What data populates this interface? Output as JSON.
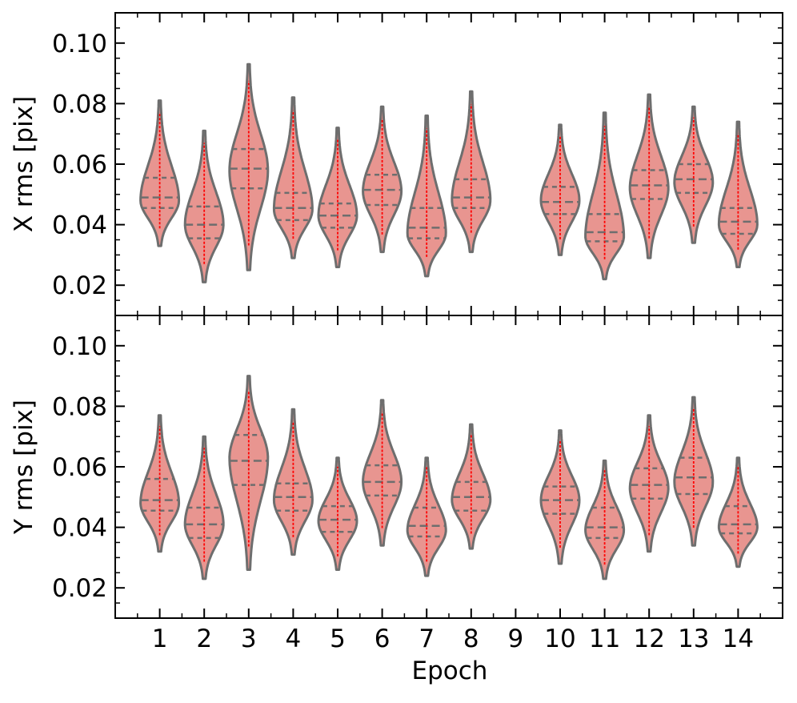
{
  "chart_data": [
    {
      "type": "violin",
      "ylabel": "X rms [pix]",
      "xlabel": "",
      "ylim": [
        0.01,
        0.11
      ],
      "yticks": [
        0.02,
        0.04,
        0.06,
        0.08,
        0.1
      ],
      "ytick_labels": [
        "0.02",
        "0.04",
        "0.06",
        "0.08",
        "0.10"
      ],
      "categories": [
        "1",
        "2",
        "3",
        "4",
        "5",
        "6",
        "7",
        "8",
        "9",
        "10",
        "11",
        "12",
        "13",
        "14"
      ],
      "fill_color": "#e89590",
      "edge_color": "#6e6e6e",
      "marker_color": "#ff0000",
      "violins": [
        {
          "epoch": "1",
          "min": 0.033,
          "q1": 0.0455,
          "median": 0.049,
          "q3": 0.0555,
          "max": 0.081,
          "mode": 0.048
        },
        {
          "epoch": "2",
          "min": 0.021,
          "q1": 0.0355,
          "median": 0.04,
          "q3": 0.046,
          "max": 0.071,
          "mode": 0.04
        },
        {
          "epoch": "3",
          "min": 0.025,
          "q1": 0.052,
          "median": 0.0585,
          "q3": 0.065,
          "max": 0.093,
          "mode": 0.058
        },
        {
          "epoch": "4",
          "min": 0.029,
          "q1": 0.0415,
          "median": 0.0455,
          "q3": 0.0505,
          "max": 0.082,
          "mode": 0.045
        },
        {
          "epoch": "5",
          "min": 0.026,
          "q1": 0.039,
          "median": 0.043,
          "q3": 0.047,
          "max": 0.072,
          "mode": 0.043
        },
        {
          "epoch": "6",
          "min": 0.031,
          "q1": 0.0465,
          "median": 0.0515,
          "q3": 0.0565,
          "max": 0.079,
          "mode": 0.051
        },
        {
          "epoch": "7",
          "min": 0.023,
          "q1": 0.0355,
          "median": 0.039,
          "q3": 0.0455,
          "max": 0.076,
          "mode": 0.037
        },
        {
          "epoch": "8",
          "min": 0.031,
          "q1": 0.0455,
          "median": 0.049,
          "q3": 0.055,
          "max": 0.084,
          "mode": 0.048
        },
        {
          "epoch": "10",
          "min": 0.03,
          "q1": 0.0435,
          "median": 0.0475,
          "q3": 0.0525,
          "max": 0.073,
          "mode": 0.048
        },
        {
          "epoch": "11",
          "min": 0.022,
          "q1": 0.0345,
          "median": 0.0375,
          "q3": 0.0435,
          "max": 0.077,
          "mode": 0.036
        },
        {
          "epoch": "12",
          "min": 0.029,
          "q1": 0.0485,
          "median": 0.053,
          "q3": 0.058,
          "max": 0.083,
          "mode": 0.052
        },
        {
          "epoch": "13",
          "min": 0.034,
          "q1": 0.0505,
          "median": 0.055,
          "q3": 0.06,
          "max": 0.079,
          "mode": 0.054
        },
        {
          "epoch": "14",
          "min": 0.026,
          "q1": 0.037,
          "median": 0.041,
          "q3": 0.0455,
          "max": 0.074,
          "mode": 0.04
        }
      ]
    },
    {
      "type": "violin",
      "ylabel": "Y rms [pix]",
      "xlabel": "Epoch",
      "ylim": [
        0.01,
        0.11
      ],
      "yticks": [
        0.02,
        0.04,
        0.06,
        0.08,
        0.1
      ],
      "ytick_labels": [
        "0.02",
        "0.04",
        "0.06",
        "0.08",
        "0.10"
      ],
      "categories": [
        "1",
        "2",
        "3",
        "4",
        "5",
        "6",
        "7",
        "8",
        "9",
        "10",
        "11",
        "12",
        "13",
        "14"
      ],
      "fill_color": "#e89590",
      "edge_color": "#6e6e6e",
      "marker_color": "#ff0000",
      "violins": [
        {
          "epoch": "1",
          "min": 0.032,
          "q1": 0.0455,
          "median": 0.049,
          "q3": 0.056,
          "max": 0.077,
          "mode": 0.048
        },
        {
          "epoch": "2",
          "min": 0.023,
          "q1": 0.0365,
          "median": 0.041,
          "q3": 0.0465,
          "max": 0.07,
          "mode": 0.041
        },
        {
          "epoch": "3",
          "min": 0.026,
          "q1": 0.054,
          "median": 0.062,
          "q3": 0.0705,
          "max": 0.09,
          "mode": 0.063
        },
        {
          "epoch": "4",
          "min": 0.031,
          "q1": 0.0455,
          "median": 0.05,
          "q3": 0.0545,
          "max": 0.079,
          "mode": 0.049
        },
        {
          "epoch": "5",
          "min": 0.026,
          "q1": 0.0385,
          "median": 0.0425,
          "q3": 0.047,
          "max": 0.063,
          "mode": 0.042
        },
        {
          "epoch": "6",
          "min": 0.034,
          "q1": 0.0505,
          "median": 0.055,
          "q3": 0.0605,
          "max": 0.082,
          "mode": 0.055
        },
        {
          "epoch": "7",
          "min": 0.024,
          "q1": 0.037,
          "median": 0.0405,
          "q3": 0.0465,
          "max": 0.063,
          "mode": 0.039
        },
        {
          "epoch": "8",
          "min": 0.033,
          "q1": 0.0455,
          "median": 0.05,
          "q3": 0.055,
          "max": 0.074,
          "mode": 0.049
        },
        {
          "epoch": "10",
          "min": 0.028,
          "q1": 0.0445,
          "median": 0.049,
          "q3": 0.0535,
          "max": 0.072,
          "mode": 0.049
        },
        {
          "epoch": "11",
          "min": 0.023,
          "q1": 0.0365,
          "median": 0.04,
          "q3": 0.0465,
          "max": 0.062,
          "mode": 0.039
        },
        {
          "epoch": "12",
          "min": 0.032,
          "q1": 0.0495,
          "median": 0.054,
          "q3": 0.0595,
          "max": 0.077,
          "mode": 0.053
        },
        {
          "epoch": "13",
          "min": 0.034,
          "q1": 0.051,
          "median": 0.0565,
          "q3": 0.063,
          "max": 0.083,
          "mode": 0.055
        },
        {
          "epoch": "14",
          "min": 0.027,
          "q1": 0.038,
          "median": 0.041,
          "q3": 0.047,
          "max": 0.063,
          "mode": 0.04
        }
      ]
    }
  ]
}
